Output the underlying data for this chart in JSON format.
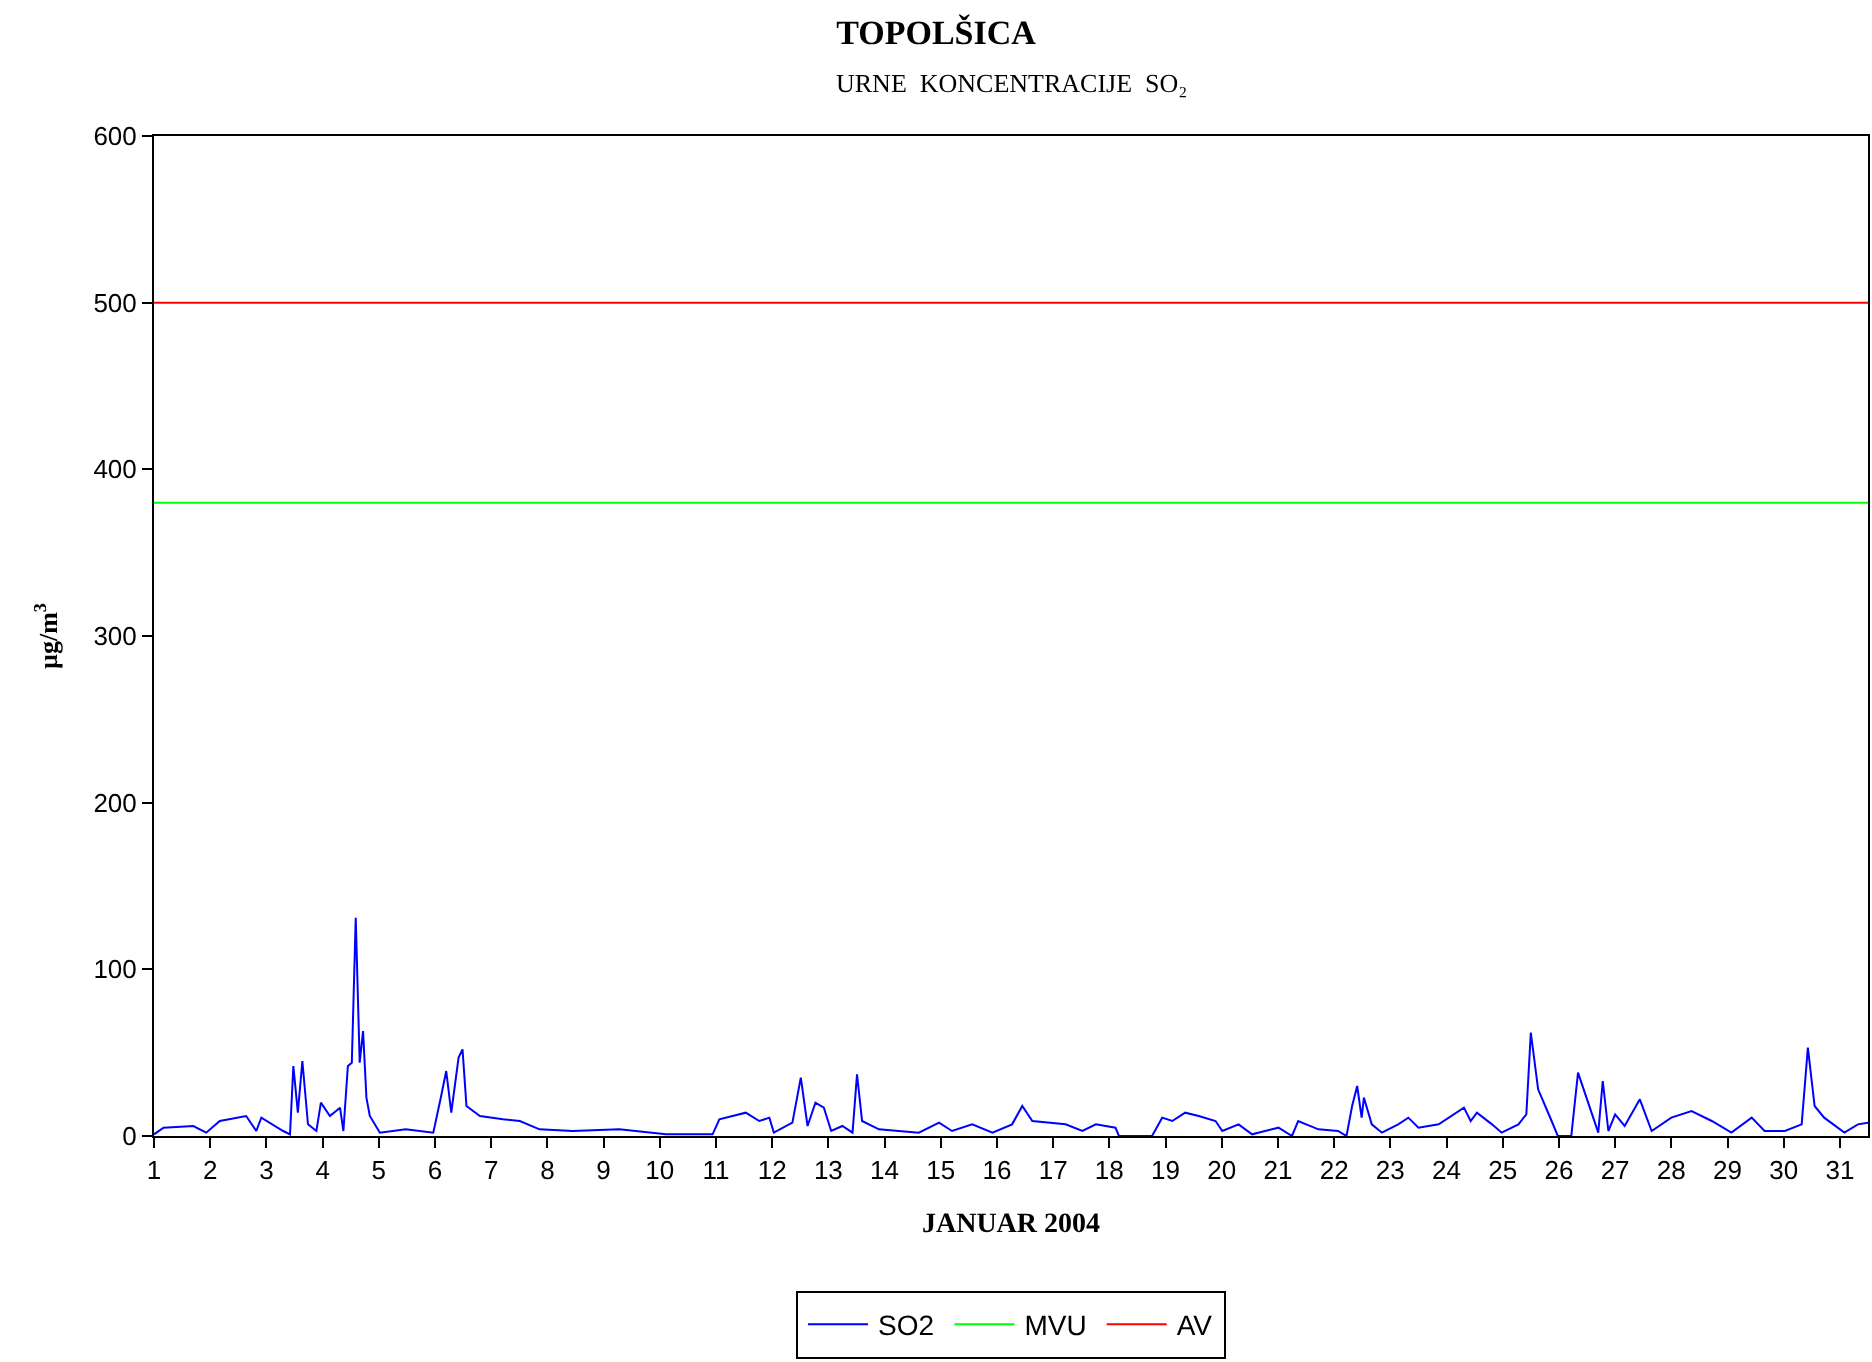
{
  "chart_data": {
    "type": "line",
    "title": "TOPOLŠICA",
    "subtitle": "URNE  KONCENTRACIJE  SO₂",
    "xlabel": "JANUAR 2004",
    "ylabel": "µg/m$^{3}$",
    "xlim": [
      1,
      31.5
    ],
    "xticks": [
      1,
      2,
      3,
      4,
      5,
      6,
      7,
      8,
      9,
      10,
      11,
      12,
      13,
      14,
      15,
      16,
      17,
      18,
      19,
      20,
      21,
      22,
      23,
      24,
      25,
      26,
      27,
      28,
      29,
      30,
      31
    ],
    "ylim": [
      0,
      600
    ],
    "yticks": [
      0,
      100,
      200,
      300,
      400,
      500,
      600
    ],
    "grid": false,
    "legend": "bottom",
    "marker": "none",
    "line_style": "solid",
    "series": [
      {
        "name": "SO2",
        "color": "#0000ff",
        "x": [
          1.0,
          1.17,
          1.7,
          1.93,
          2.17,
          2.64,
          2.82,
          2.91,
          3.3,
          3.42,
          3.48,
          3.56,
          3.64,
          3.74,
          3.89,
          3.97,
          4.13,
          4.31,
          4.37,
          4.45,
          4.52,
          4.59,
          4.66,
          4.72,
          4.78,
          4.84,
          5.02,
          5.48,
          5.97,
          6.11,
          6.2,
          6.29,
          6.42,
          6.49,
          6.56,
          6.8,
          7.21,
          7.51,
          7.86,
          8.45,
          9.28,
          10.11,
          10.82,
          10.94,
          11.06,
          11.53,
          11.77,
          11.95,
          12.03,
          12.36,
          12.51,
          12.63,
          12.77,
          12.92,
          13.05,
          13.25,
          13.43,
          13.51,
          13.6,
          13.9,
          14.61,
          14.97,
          15.2,
          15.56,
          15.92,
          16.27,
          16.45,
          16.63,
          17.22,
          17.52,
          17.76,
          18.11,
          18.17,
          18.76,
          18.94,
          19.12,
          19.35,
          19.59,
          19.89,
          20.01,
          20.3,
          20.54,
          21.01,
          21.25,
          21.36,
          21.72,
          22.07,
          22.22,
          22.32,
          22.41,
          22.49,
          22.53,
          22.67,
          22.85,
          23.14,
          23.32,
          23.5,
          23.86,
          24.31,
          24.43,
          24.54,
          24.81,
          24.98,
          25.28,
          25.42,
          25.5,
          25.63,
          25.87,
          25.98,
          26.22,
          26.34,
          26.58,
          26.7,
          26.78,
          26.88,
          27.0,
          27.17,
          27.44,
          27.65,
          28.0,
          28.36,
          28.72,
          29.07,
          29.43,
          29.66,
          30.02,
          30.32,
          30.43,
          30.55,
          30.72,
          31.08,
          31.32,
          31.5
        ],
        "values": [
          1,
          5,
          6,
          2,
          9,
          12,
          3,
          11,
          3,
          1,
          42,
          14,
          45,
          7,
          3,
          20,
          12,
          17,
          3,
          42,
          44,
          131,
          44,
          63,
          23,
          12,
          2,
          4,
          2,
          24,
          39,
          14,
          47,
          52,
          18,
          12,
          10,
          9,
          4,
          3,
          4,
          1,
          1,
          1,
          10,
          14,
          9,
          11,
          2,
          8,
          35,
          6,
          20,
          17,
          3,
          6,
          2,
          37,
          9,
          4,
          2,
          8,
          3,
          7,
          2,
          7,
          18,
          9,
          7,
          3,
          7,
          5,
          0,
          0,
          11,
          9,
          14,
          12,
          9,
          3,
          7,
          1,
          5,
          0,
          9,
          4,
          3,
          0,
          18,
          30,
          11,
          23,
          7,
          2,
          7,
          11,
          5,
          7,
          17,
          9,
          14,
          7,
          2,
          7,
          13,
          62,
          28,
          9,
          0,
          0,
          38,
          14,
          2,
          33,
          3,
          13,
          6,
          22,
          3,
          11,
          15,
          9,
          2,
          11,
          3,
          3,
          7,
          53,
          18,
          11,
          2,
          7,
          8
        ]
      },
      {
        "name": "MVU",
        "color": "#00ff00",
        "x": [
          1,
          31.5
        ],
        "values": [
          380,
          380
        ]
      },
      {
        "name": "AV",
        "color": "#ff0000",
        "x": [
          1,
          31.5
        ],
        "values": [
          500,
          500
        ]
      }
    ]
  }
}
